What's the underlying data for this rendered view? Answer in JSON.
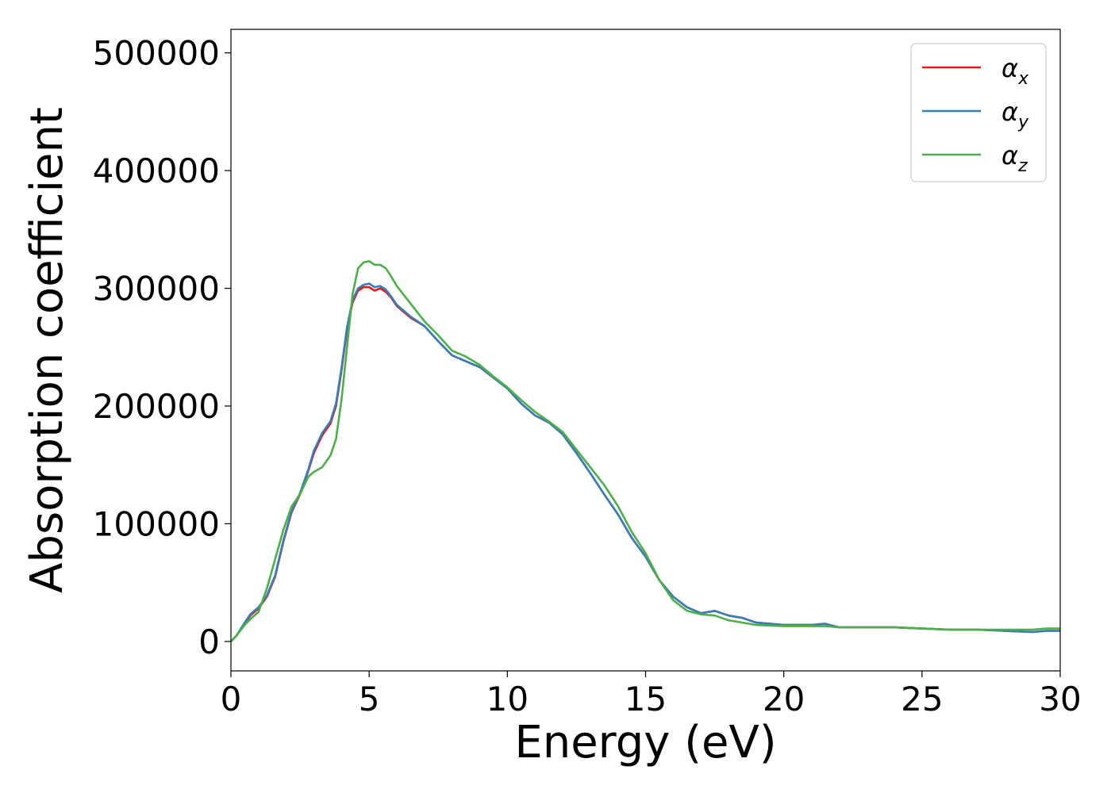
{
  "chart_data": {
    "type": "line",
    "xlabel": "Energy (eV)",
    "ylabel": "Absorption coefficient",
    "xlim": [
      0,
      30
    ],
    "ylim": [
      -25000,
      520000
    ],
    "xticks": [
      0,
      5,
      10,
      15,
      20,
      25,
      30
    ],
    "yticks": [
      0,
      100000,
      200000,
      300000,
      400000,
      500000
    ],
    "xtick_labels": [
      "0",
      "5",
      "10",
      "15",
      "20",
      "25",
      "30"
    ],
    "ytick_labels": [
      "0",
      "100000",
      "200000",
      "300000",
      "400000",
      "500000"
    ],
    "grid": false,
    "legend_position": "top-right",
    "series": [
      {
        "name": "αx",
        "symbol": "α",
        "subscript": "x",
        "color": "#e41a1c",
        "x": [
          0,
          0.2,
          0.5,
          0.7,
          1.0,
          1.3,
          1.6,
          1.9,
          2.2,
          2.5,
          2.8,
          3.0,
          3.3,
          3.6,
          3.8,
          4.0,
          4.2,
          4.4,
          4.6,
          4.8,
          5.0,
          5.2,
          5.4,
          5.6,
          5.8,
          6.0,
          6.5,
          7.0,
          7.5,
          8.0,
          8.5,
          9.0,
          9.5,
          10.0,
          10.5,
          11.0,
          11.5,
          12.0,
          12.5,
          13.0,
          13.5,
          14.0,
          14.5,
          15.0,
          15.5,
          16.0,
          16.5,
          17.0,
          17.5,
          18.0,
          18.5,
          19.0,
          20.0,
          21.0,
          21.5,
          22.0,
          23.0,
          24.0,
          25.0,
          26.0,
          27.0,
          28.0,
          29.0,
          29.5,
          30.0
        ],
        "y": [
          0,
          5000,
          15000,
          22000,
          28000,
          38000,
          55000,
          85000,
          110000,
          125000,
          145000,
          160000,
          175000,
          185000,
          200000,
          230000,
          265000,
          288000,
          298000,
          301000,
          301000,
          298000,
          300000,
          297000,
          292000,
          285000,
          275000,
          268000,
          255000,
          243000,
          238000,
          233000,
          224000,
          215000,
          202000,
          192000,
          186000,
          176000,
          160000,
          143000,
          125000,
          108000,
          88000,
          72000,
          52000,
          38000,
          29000,
          24000,
          26000,
          22000,
          20000,
          16000,
          14000,
          14000,
          15000,
          12000,
          12000,
          12000,
          11000,
          10000,
          10000,
          9000,
          8000,
          9000,
          9000
        ]
      },
      {
        "name": "αy",
        "symbol": "α",
        "subscript": "y",
        "color": "#377eb8",
        "x": [
          0,
          0.2,
          0.5,
          0.7,
          1.0,
          1.3,
          1.6,
          1.9,
          2.2,
          2.5,
          2.8,
          3.0,
          3.3,
          3.6,
          3.8,
          4.0,
          4.2,
          4.4,
          4.6,
          4.8,
          5.0,
          5.2,
          5.4,
          5.6,
          5.8,
          6.0,
          6.5,
          7.0,
          7.5,
          8.0,
          8.5,
          9.0,
          9.5,
          10.0,
          10.5,
          11.0,
          11.5,
          12.0,
          12.5,
          13.0,
          13.5,
          14.0,
          14.5,
          15.0,
          15.5,
          16.0,
          16.5,
          17.0,
          17.5,
          18.0,
          18.5,
          19.0,
          20.0,
          21.0,
          21.5,
          22.0,
          23.0,
          24.0,
          25.0,
          26.0,
          27.0,
          28.0,
          29.0,
          29.5,
          30.0
        ],
        "y": [
          0,
          5000,
          16000,
          23000,
          29000,
          39000,
          56000,
          86000,
          111000,
          126000,
          146000,
          162000,
          177000,
          187000,
          202000,
          232000,
          267000,
          290000,
          300000,
          303000,
          304000,
          301000,
          302000,
          299000,
          293000,
          286000,
          276000,
          268000,
          255000,
          243000,
          238000,
          233000,
          224000,
          215000,
          202000,
          192000,
          186000,
          176000,
          160000,
          143000,
          125000,
          108000,
          88000,
          72000,
          52000,
          38000,
          29000,
          24000,
          26000,
          22000,
          20000,
          16000,
          14000,
          14000,
          15000,
          12000,
          12000,
          12000,
          11000,
          10000,
          10000,
          9000,
          8000,
          9000,
          9000
        ]
      },
      {
        "name": "αz",
        "symbol": "α",
        "subscript": "z",
        "color": "#4daf4a",
        "x": [
          0,
          0.2,
          0.5,
          0.7,
          1.0,
          1.3,
          1.6,
          1.9,
          2.2,
          2.5,
          2.8,
          3.0,
          3.3,
          3.6,
          3.8,
          4.0,
          4.2,
          4.4,
          4.6,
          4.8,
          5.0,
          5.2,
          5.4,
          5.6,
          5.8,
          6.0,
          6.5,
          7.0,
          7.5,
          8.0,
          8.5,
          9.0,
          9.5,
          10.0,
          10.5,
          11.0,
          11.5,
          12.0,
          12.5,
          13.0,
          13.5,
          14.0,
          14.5,
          15.0,
          15.5,
          16.0,
          16.5,
          17.0,
          17.5,
          18.0,
          18.5,
          19.0,
          20.0,
          21.0,
          21.5,
          22.0,
          23.0,
          24.0,
          25.0,
          26.0,
          27.0,
          28.0,
          29.0,
          29.5,
          30.0
        ],
        "y": [
          0,
          5000,
          14000,
          19000,
          25000,
          45000,
          70000,
          95000,
          115000,
          125000,
          140000,
          144000,
          148000,
          158000,
          172000,
          205000,
          250000,
          295000,
          317000,
          322000,
          323000,
          320000,
          320000,
          317000,
          310000,
          302000,
          287000,
          272000,
          260000,
          247000,
          242000,
          235000,
          225000,
          216000,
          205000,
          195000,
          187000,
          178000,
          163000,
          148000,
          133000,
          115000,
          93000,
          75000,
          52000,
          35000,
          26000,
          23000,
          22000,
          18000,
          16000,
          14000,
          13000,
          13000,
          13000,
          12000,
          12000,
          12000,
          11000,
          10000,
          10000,
          10000,
          10000,
          11000,
          11000
        ]
      }
    ]
  }
}
